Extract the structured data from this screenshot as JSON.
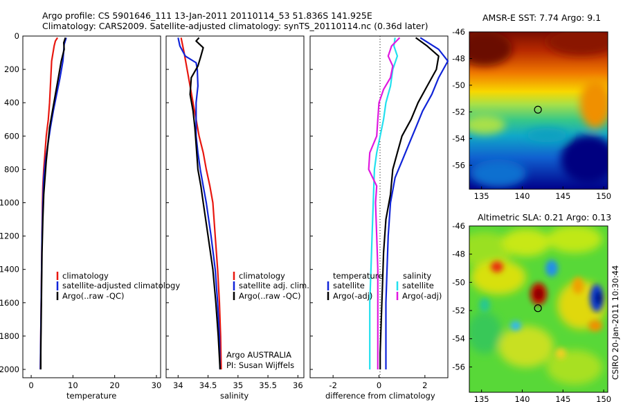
{
  "header": {
    "title_line1": "Argo profile: CS 5901646_111 13-Jan-2011 20110114_53 51.836S 141.925E",
    "title_line2": "Climatology: CARS2009. Satellite-adjusted climatology: synTS_20110114.nc (0.36d later)"
  },
  "chart_data": [
    {
      "id": "temperature",
      "type": "line",
      "xlabel": "temperature",
      "ylabel": "",
      "xlim": [
        -2,
        31
      ],
      "ylim": [
        2050,
        0
      ],
      "xticks": [
        0,
        10,
        20,
        30
      ],
      "yticks": [
        0,
        200,
        400,
        600,
        800,
        1000,
        1200,
        1400,
        1600,
        1800,
        2000
      ],
      "legend_position": "lower-right",
      "series": [
        {
          "name": "climatology",
          "color": "#e8170f",
          "points": [
            [
              6.3,
              10
            ],
            [
              5.8,
              30
            ],
            [
              5.5,
              60
            ],
            [
              4.9,
              150
            ],
            [
              4.6,
              300
            ],
            [
              4.4,
              400
            ],
            [
              4.1,
              500
            ],
            [
              3.6,
              600
            ],
            [
              3.3,
              700
            ],
            [
              3.0,
              800
            ],
            [
              2.8,
              900
            ],
            [
              2.7,
              1000
            ],
            [
              2.6,
              1200
            ],
            [
              2.5,
              1400
            ],
            [
              2.4,
              1600
            ],
            [
              2.3,
              1800
            ],
            [
              2.2,
              2000
            ]
          ]
        },
        {
          "name": "satellite-adjusted climatology",
          "color": "#1024d8",
          "points": [
            [
              8.4,
              10
            ],
            [
              7.9,
              50
            ],
            [
              7.6,
              150
            ],
            [
              6.9,
              250
            ],
            [
              6.1,
              350
            ],
            [
              5.3,
              450
            ],
            [
              4.6,
              550
            ],
            [
              4.0,
              650
            ],
            [
              3.4,
              750
            ],
            [
              3.0,
              850
            ],
            [
              2.8,
              1000
            ],
            [
              2.6,
              1200
            ],
            [
              2.5,
              1400
            ],
            [
              2.4,
              1600
            ],
            [
              2.3,
              1800
            ],
            [
              2.2,
              2000
            ]
          ]
        },
        {
          "name": "Argo(..raw -QC)",
          "color": "#000000",
          "points": [
            [
              8.2,
              10
            ],
            [
              7.8,
              40
            ],
            [
              7.9,
              80
            ],
            [
              7.2,
              150
            ],
            [
              6.5,
              250
            ],
            [
              5.8,
              350
            ],
            [
              5.1,
              450
            ],
            [
              4.4,
              550
            ],
            [
              4.0,
              650
            ],
            [
              3.6,
              750
            ],
            [
              3.3,
              850
            ],
            [
              3.0,
              950
            ],
            [
              2.8,
              1100
            ],
            [
              2.6,
              1300
            ],
            [
              2.5,
              1500
            ],
            [
              2.4,
              1700
            ],
            [
              2.3,
              1900
            ],
            [
              2.3,
              2000
            ]
          ]
        }
      ]
    },
    {
      "id": "salinity",
      "type": "line",
      "xlabel": "salinity",
      "ylabel": "",
      "xlim": [
        33.8,
        36.1
      ],
      "ylim": [
        2050,
        0
      ],
      "xticks": [
        34,
        34.5,
        35,
        35.5,
        36
      ],
      "legend_position": "lower-right",
      "annotation_line1": "Argo AUSTRALIA",
      "annotation_line2": "PI: Susan Wijffels",
      "series": [
        {
          "name": "climatology",
          "color": "#e8170f",
          "points": [
            [
              34.05,
              10
            ],
            [
              34.1,
              100
            ],
            [
              34.15,
              200
            ],
            [
              34.2,
              300
            ],
            [
              34.25,
              400
            ],
            [
              34.3,
              500
            ],
            [
              34.35,
              600
            ],
            [
              34.42,
              700
            ],
            [
              34.47,
              800
            ],
            [
              34.53,
              900
            ],
            [
              34.58,
              1000
            ],
            [
              34.62,
              1200
            ],
            [
              34.66,
              1400
            ],
            [
              34.69,
              1600
            ],
            [
              34.71,
              1800
            ],
            [
              34.72,
              2000
            ]
          ]
        },
        {
          "name": "satellite adj. clim.",
          "color": "#1024d8",
          "points": [
            [
              34.0,
              10
            ],
            [
              34.03,
              60
            ],
            [
              34.12,
              120
            ],
            [
              34.3,
              160
            ],
            [
              34.32,
              200
            ],
            [
              34.33,
              300
            ],
            [
              34.3,
              400
            ],
            [
              34.3,
              500
            ],
            [
              34.3,
              600
            ],
            [
              34.33,
              700
            ],
            [
              34.37,
              800
            ],
            [
              34.42,
              900
            ],
            [
              34.47,
              1000
            ],
            [
              34.55,
              1200
            ],
            [
              34.62,
              1400
            ],
            [
              34.66,
              1600
            ],
            [
              34.69,
              1800
            ],
            [
              34.7,
              2000
            ]
          ]
        },
        {
          "name": "Argo(..raw -QC)",
          "color": "#000000",
          "points": [
            [
              34.35,
              10
            ],
            [
              34.3,
              30
            ],
            [
              34.42,
              70
            ],
            [
              34.38,
              120
            ],
            [
              34.33,
              180
            ],
            [
              34.22,
              250
            ],
            [
              34.2,
              350
            ],
            [
              34.25,
              450
            ],
            [
              34.28,
              550
            ],
            [
              34.3,
              650
            ],
            [
              34.33,
              800
            ],
            [
              34.38,
              900
            ],
            [
              34.42,
              1000
            ],
            [
              34.5,
              1200
            ],
            [
              34.58,
              1400
            ],
            [
              34.63,
              1600
            ],
            [
              34.67,
              1800
            ],
            [
              34.7,
              2000
            ]
          ]
        }
      ]
    },
    {
      "id": "difference",
      "type": "line",
      "xlabel": "difference from climatology",
      "ylabel": "",
      "xlim": [
        -3,
        3
      ],
      "ylim": [
        2050,
        0
      ],
      "xticks": [
        -2,
        0,
        2
      ],
      "zero_line": "dotted",
      "legend_position": "lower-right",
      "legend_group_titles": [
        "temperature",
        "salinity"
      ],
      "series": [
        {
          "name": "satellite",
          "group": "temperature",
          "color": "#1024d8",
          "points": [
            [
              1.8,
              10
            ],
            [
              2.6,
              80
            ],
            [
              3.0,
              150
            ],
            [
              2.6,
              250
            ],
            [
              2.3,
              350
            ],
            [
              1.9,
              450
            ],
            [
              1.6,
              550
            ],
            [
              1.3,
              650
            ],
            [
              1.0,
              750
            ],
            [
              0.7,
              850
            ],
            [
              0.5,
              1000
            ],
            [
              0.4,
              1200
            ],
            [
              0.35,
              1400
            ],
            [
              0.3,
              1600
            ],
            [
              0.3,
              1800
            ],
            [
              0.3,
              2000
            ]
          ]
        },
        {
          "name": "Argo(-adj)",
          "group": "temperature",
          "color": "#000000",
          "points": [
            [
              1.6,
              10
            ],
            [
              2.1,
              60
            ],
            [
              2.6,
              120
            ],
            [
              2.5,
              200
            ],
            [
              2.1,
              300
            ],
            [
              1.7,
              400
            ],
            [
              1.4,
              500
            ],
            [
              1.0,
              600
            ],
            [
              0.8,
              700
            ],
            [
              0.6,
              800
            ],
            [
              0.5,
              950
            ],
            [
              0.3,
              1100
            ],
            [
              0.2,
              1300
            ],
            [
              0.15,
              1500
            ],
            [
              0.1,
              1700
            ],
            [
              0.05,
              1900
            ],
            [
              0.05,
              2000
            ]
          ]
        },
        {
          "name": "satellite",
          "group": "salinity",
          "color": "#22e0ee",
          "points": [
            [
              0.7,
              10
            ],
            [
              0.65,
              60
            ],
            [
              0.8,
              120
            ],
            [
              0.6,
              200
            ],
            [
              0.5,
              300
            ],
            [
              0.3,
              400
            ],
            [
              0.2,
              500
            ],
            [
              0.05,
              600
            ],
            [
              -0.1,
              700
            ],
            [
              -0.2,
              800
            ],
            [
              -0.25,
              1000
            ],
            [
              -0.3,
              1200
            ],
            [
              -0.35,
              1400
            ],
            [
              -0.4,
              1600
            ],
            [
              -0.4,
              1800
            ],
            [
              -0.4,
              2000
            ]
          ]
        },
        {
          "name": "Argo(-adj)",
          "group": "salinity",
          "color": "#e018e0",
          "points": [
            [
              0.9,
              10
            ],
            [
              0.55,
              60
            ],
            [
              0.4,
              120
            ],
            [
              0.6,
              180
            ],
            [
              0.5,
              250
            ],
            [
              0.2,
              320
            ],
            [
              0.0,
              400
            ],
            [
              -0.05,
              500
            ],
            [
              -0.1,
              600
            ],
            [
              -0.4,
              700
            ],
            [
              -0.45,
              800
            ],
            [
              -0.1,
              900
            ],
            [
              -0.15,
              1000
            ],
            [
              -0.1,
              1200
            ],
            [
              -0.05,
              1400
            ],
            [
              -0.05,
              1600
            ],
            [
              -0.05,
              1800
            ],
            [
              -0.05,
              2000
            ]
          ]
        }
      ]
    },
    {
      "id": "sst_map",
      "type": "heatmap",
      "title": "AMSR-E SST: 7.74 Argo: 9.1",
      "xlim": [
        133.5,
        150.5
      ],
      "ylim": [
        -57.8,
        -46
      ],
      "xticks": [
        135,
        140,
        145,
        150
      ],
      "yticks": [
        -46,
        -48,
        -50,
        -52,
        -54,
        -56
      ],
      "marker": {
        "lon": 141.925,
        "lat": -51.836
      }
    },
    {
      "id": "sla_map",
      "type": "heatmap",
      "title": "Altimetric SLA: 0.21 Argo: 0.13",
      "side_label": "CSIRO 20-Jan-2011 10:30:44",
      "xlim": [
        133.5,
        150.5
      ],
      "ylim": [
        -57.8,
        -46
      ],
      "xticks": [
        135,
        140,
        145,
        150
      ],
      "yticks": [
        -46,
        -48,
        -50,
        -52,
        -54,
        -56
      ],
      "marker": {
        "lon": 141.925,
        "lat": -51.836
      }
    }
  ]
}
